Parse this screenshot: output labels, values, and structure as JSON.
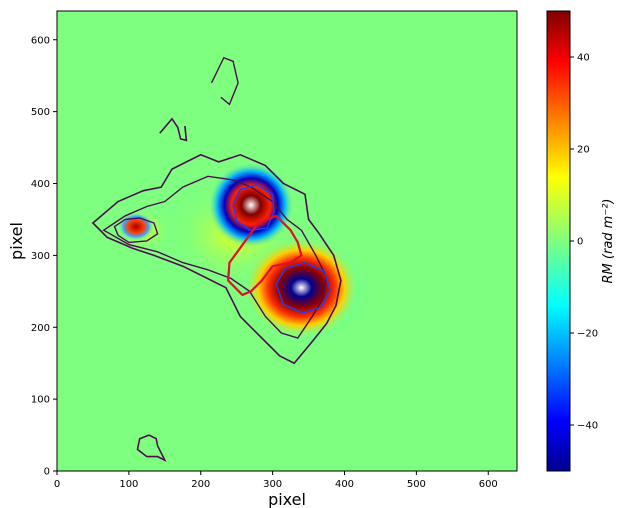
{
  "chart_data": {
    "type": "heatmap",
    "title": "",
    "xlabel": "pixel",
    "ylabel": "pixel",
    "xlim": [
      0,
      640
    ],
    "ylim": [
      0,
      640
    ],
    "x_ticks": [
      0,
      100,
      200,
      300,
      400,
      500,
      600
    ],
    "y_ticks": [
      0,
      100,
      200,
      300,
      400,
      500,
      600
    ],
    "grid": false,
    "colorbar": {
      "label": "RM (rad m⁻²)",
      "range": [
        -50,
        50
      ],
      "ticks": [
        -40,
        -20,
        0,
        20,
        40
      ],
      "colormap": "jet",
      "colors": [
        "#00008f",
        "#0000ff",
        "#00ffff",
        "#7fff7f",
        "#ffff00",
        "#ff0000",
        "#800000"
      ]
    },
    "background_value": 0,
    "features": [
      {
        "center": [
          270,
          370
        ],
        "extent": [
          60,
          60
        ],
        "rm_range": [
          -50,
          50
        ]
      },
      {
        "center": [
          340,
          255
        ],
        "extent": [
          80,
          70
        ],
        "rm_range": [
          -50,
          50
        ]
      },
      {
        "center": [
          110,
          340
        ],
        "extent": [
          25,
          20
        ],
        "rm_range": [
          -30,
          50
        ]
      }
    ],
    "contour_color": "#4b0f4f",
    "outline_color": "#e0102a"
  }
}
